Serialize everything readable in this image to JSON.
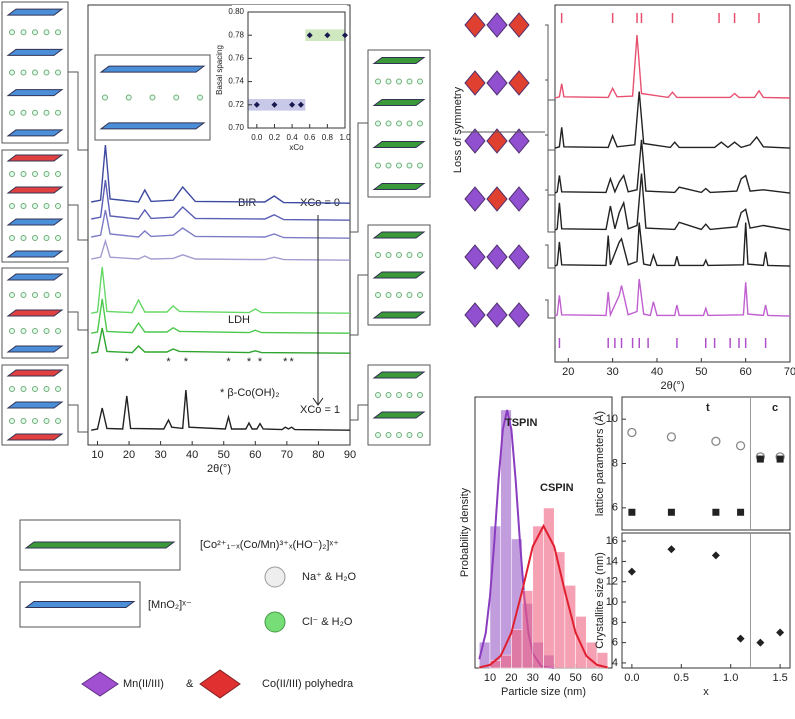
{
  "chart_data": [
    {
      "type": "line",
      "xlabel": "2θ(°)",
      "xlim": [
        7,
        90
      ],
      "xticks": [
        10,
        20,
        30,
        40,
        50,
        60,
        70,
        80,
        90
      ],
      "annotations": [
        "BIR",
        "XCo = 0",
        "LDH",
        "* β-Co(OH)₂",
        "XCo = 1"
      ],
      "peak_marker": "*",
      "peak_marker_x": [
        19.3,
        32.5,
        38,
        51.5,
        58,
        61.5,
        69.5,
        71.5
      ],
      "series": [
        {
          "color": "#3d4aa0",
          "x": [
            8,
            11,
            12.5,
            14,
            23,
            25,
            27,
            34,
            37,
            41,
            63,
            66,
            69,
            90
          ],
          "values": [
            5,
            8,
            100,
            10,
            5,
            25,
            6,
            8,
            30,
            6,
            5,
            15,
            4,
            3
          ]
        },
        {
          "color": "#5b5fb5",
          "x": [
            8,
            11,
            12.5,
            14,
            23,
            25,
            27,
            34,
            37,
            41,
            63,
            66,
            69,
            90
          ],
          "values": [
            5,
            8,
            70,
            10,
            5,
            20,
            6,
            8,
            25,
            6,
            5,
            12,
            4,
            3
          ]
        },
        {
          "color": "#7c7bc5",
          "x": [
            8,
            11,
            12.5,
            14,
            23,
            25,
            27,
            34,
            37,
            41,
            63,
            66,
            69,
            90
          ],
          "values": [
            5,
            8,
            50,
            10,
            5,
            15,
            6,
            8,
            20,
            6,
            5,
            10,
            4,
            3
          ]
        },
        {
          "color": "#a59cd0",
          "x": [
            8,
            11,
            12.5,
            14,
            23,
            25,
            27,
            34,
            37,
            41,
            63,
            66,
            69,
            90
          ],
          "values": [
            5,
            8,
            35,
            8,
            5,
            10,
            5,
            6,
            12,
            5,
            4,
            8,
            4,
            3
          ]
        },
        {
          "color": "#66d866",
          "x": [
            8,
            10,
            11.5,
            13,
            21,
            23,
            25,
            32,
            34,
            36,
            58,
            60,
            62,
            90
          ],
          "values": [
            3,
            5,
            80,
            6,
            4,
            25,
            5,
            5,
            15,
            6,
            4,
            10,
            4,
            3
          ]
        },
        {
          "color": "#4cc84c",
          "x": [
            8,
            10,
            11.5,
            13,
            21,
            23,
            25,
            32,
            34,
            36,
            58,
            60,
            62,
            90
          ],
          "values": [
            3,
            5,
            60,
            6,
            4,
            20,
            5,
            5,
            12,
            6,
            4,
            8,
            4,
            3
          ]
        },
        {
          "color": "#2fa52f",
          "x": [
            8,
            10,
            11.5,
            13,
            21,
            23,
            25,
            32,
            34,
            36,
            58,
            60,
            62,
            90
          ],
          "values": [
            3,
            5,
            45,
            6,
            4,
            15,
            5,
            5,
            10,
            6,
            4,
            7,
            4,
            3
          ]
        },
        {
          "color": "#222222",
          "x": [
            8,
            10,
            11.5,
            13,
            18,
            19.3,
            20.5,
            31,
            32.5,
            33.5,
            37,
            38,
            39,
            50.5,
            51.5,
            52.5,
            57,
            58,
            59,
            60.5,
            61.5,
            62.5,
            68.5,
            69.5,
            70.5,
            71.5,
            72.5,
            90
          ],
          "values": [
            3,
            5,
            40,
            6,
            5,
            60,
            6,
            5,
            20,
            8,
            6,
            70,
            8,
            5,
            25,
            5,
            5,
            15,
            5,
            5,
            14,
            5,
            4,
            8,
            5,
            8,
            4,
            3
          ]
        }
      ]
    },
    {
      "type": "scatter",
      "xlabel": "xCo",
      "ylabel": "Basal spacing",
      "xlim": [
        -0.1,
        1.0
      ],
      "ylim": [
        0.7,
        0.8
      ],
      "xticks": [
        {
          "value": 0,
          "label": "0.0"
        },
        0.2,
        0.4,
        0.6,
        0.8,
        {
          "value": 1,
          "label": "1.0"
        }
      ],
      "yticks": [
        {
          "value": 0.7,
          "label": "0.70"
        },
        0.72,
        0.74,
        0.76,
        0.78,
        {
          "value": 0.8,
          "label": "0.80"
        }
      ],
      "series": [
        {
          "color": "#1a1a50",
          "marker": "diamond",
          "x": [
            0,
            0.2,
            0.4,
            0.5,
            0.6,
            0.8,
            1.0
          ],
          "values": [
            0.72,
            0.72,
            0.72,
            0.72,
            0.78,
            0.78,
            0.78
          ]
        }
      ]
    },
    {
      "type": "line",
      "xlabel": "2θ(°)",
      "xlim": [
        17,
        70
      ],
      "xticks": [
        20,
        30,
        40,
        50,
        60,
        70
      ],
      "annotations": [
        "Loss of symmetry"
      ],
      "reflections": [
        {
          "color": "#e85070",
          "positions": [
            18.5,
            30,
            35.5,
            36.5,
            43.5,
            54,
            57.5,
            63
          ]
        },
        {
          "color": "#b050c8",
          "positions": [
            18,
            29,
            30.5,
            32,
            34.5,
            36,
            38,
            44.5,
            51,
            53,
            56.5,
            58.5,
            60,
            64.5
          ]
        }
      ],
      "series": [
        {
          "color": "#e85070",
          "x": [
            17,
            18,
            18.5,
            19,
            29,
            30,
            31,
            34.5,
            35.5,
            36.5,
            42.5,
            43.5,
            44.5,
            56.5,
            57.5,
            58.5,
            62,
            63,
            64,
            70
          ],
          "values": [
            3,
            5,
            25,
            5,
            4,
            18,
            5,
            6,
            100,
            10,
            4,
            12,
            4,
            4,
            10,
            4,
            4,
            14,
            4,
            3
          ]
        },
        {
          "color": "#222222",
          "x": [
            17,
            18,
            18.5,
            19,
            29,
            30,
            31,
            35,
            36,
            37,
            43,
            44,
            45,
            53,
            54.5,
            56,
            57.5,
            59,
            61,
            62.5,
            64,
            70
          ],
          "values": [
            3,
            5,
            35,
            5,
            4,
            22,
            5,
            8,
            90,
            10,
            4,
            12,
            4,
            4,
            12,
            4,
            12,
            4,
            8,
            20,
            5,
            3
          ]
        },
        {
          "color": "#222222",
          "x": [
            17,
            17.5,
            18,
            18.5,
            28.5,
            29.5,
            30.5,
            31.5,
            32.5,
            33.5,
            35.5,
            36.5,
            37.5,
            44,
            45,
            50,
            51,
            52,
            58,
            59,
            60,
            61,
            64,
            70
          ],
          "values": [
            3,
            5,
            30,
            5,
            4,
            25,
            5,
            20,
            30,
            5,
            8,
            85,
            6,
            4,
            12,
            4,
            10,
            4,
            6,
            25,
            30,
            6,
            8,
            3
          ]
        },
        {
          "color": "#222222",
          "x": [
            17,
            17.5,
            18,
            18.5,
            28.5,
            29.5,
            30.5,
            31.5,
            32.5,
            33.5,
            35.5,
            36.5,
            37.5,
            44,
            45,
            50,
            51,
            52,
            58,
            59,
            60,
            61,
            64,
            70
          ],
          "values": [
            3,
            5,
            45,
            5,
            4,
            40,
            5,
            30,
            45,
            5,
            10,
            90,
            6,
            4,
            15,
            4,
            12,
            4,
            8,
            30,
            35,
            6,
            10,
            3
          ]
        },
        {
          "color": "#222222",
          "x": [
            17,
            17.5,
            18,
            18.5,
            28.5,
            29,
            29.5,
            31.5,
            32,
            33.5,
            35.5,
            36,
            37,
            38.5,
            39.2,
            40,
            44,
            44.5,
            45,
            50.5,
            51,
            51.5,
            59.5,
            60,
            60.5,
            64,
            64.5,
            65,
            70
          ],
          "values": [
            3,
            5,
            40,
            5,
            4,
            50,
            5,
            40,
            45,
            5,
            10,
            70,
            6,
            4,
            20,
            4,
            4,
            18,
            4,
            4,
            12,
            4,
            5,
            70,
            6,
            4,
            25,
            4,
            3
          ]
        },
        {
          "color": "#c060d0",
          "x": [
            17,
            17.5,
            18,
            18.5,
            28.5,
            29,
            29.5,
            31.5,
            32,
            33.5,
            35.5,
            36,
            37,
            38.5,
            39.2,
            40,
            44,
            44.5,
            45,
            50.5,
            51,
            51.5,
            59.5,
            60,
            60.5,
            64,
            64.5,
            65,
            70
          ],
          "values": [
            3,
            5,
            35,
            5,
            4,
            40,
            5,
            35,
            50,
            5,
            10,
            60,
            6,
            4,
            25,
            4,
            4,
            20,
            4,
            4,
            15,
            4,
            5,
            55,
            6,
            4,
            20,
            4,
            3
          ]
        }
      ]
    },
    {
      "type": "histogram",
      "xlabel": "Particle size (nm)",
      "ylabel": "Probability density",
      "xlim": [
        3,
        67
      ],
      "ylim": [
        0,
        105
      ],
      "xticks": [
        10,
        20,
        30,
        40,
        50,
        60
      ],
      "series": [
        {
          "name": "TSPIN",
          "color": "#9a5cc8",
          "fit_color": "#8a3cc0",
          "bins": [
            5,
            10,
            15,
            20,
            25,
            30,
            35,
            40
          ],
          "values": [
            10,
            55,
            100,
            50,
            25,
            10,
            5
          ],
          "fit_x": [
            5,
            8,
            10,
            12,
            14,
            16,
            18,
            20,
            22,
            24,
            26,
            28,
            30,
            34,
            40
          ],
          "fit_values": [
            3.4,
            13.5,
            27.8,
            48.7,
            72.6,
            92.3,
            100,
            92.3,
            72.6,
            48.7,
            27.8,
            13.5,
            5.6,
            0.6,
            0
          ]
        },
        {
          "name": "CSPIN",
          "color": "#f06080",
          "fit_color": "#e02030",
          "bins": [
            10,
            15,
            20,
            25,
            30,
            35,
            40,
            45,
            50,
            55,
            60,
            65
          ],
          "values": [
            3,
            5,
            15,
            30,
            55,
            62,
            45,
            32,
            20,
            10,
            6
          ],
          "fit_x": [
            5,
            10,
            15,
            20,
            25,
            30,
            35,
            40,
            45,
            50,
            55,
            60,
            65
          ],
          "fit_values": [
            0.2,
            1.2,
            4.7,
            13.7,
            29.7,
            47.1,
            55,
            47.1,
            29.7,
            13.7,
            4.7,
            1.2,
            0.2
          ]
        }
      ]
    },
    {
      "type": "scatter",
      "ylabel": "lattice parameters (Å)",
      "xlim": [
        -0.1,
        1.6
      ],
      "ylim": [
        5,
        11
      ],
      "yticks": [
        6,
        8,
        10
      ],
      "annotations": [
        "t",
        "c"
      ],
      "annotation_colors": [
        "#7030a0",
        "#e03040"
      ],
      "boundary_x": 1.2,
      "series": [
        {
          "color": "#888888",
          "marker": "circle-open",
          "x": [
            0,
            0.4,
            0.85,
            1.1,
            1.3,
            1.5
          ],
          "values": [
            9.4,
            9.2,
            9.0,
            8.8,
            8.3,
            8.3
          ]
        },
        {
          "color": "#222222",
          "marker": "square",
          "x": [
            0,
            0.4,
            0.85,
            1.1,
            1.3,
            1.5
          ],
          "values": [
            5.8,
            5.8,
            5.8,
            5.8,
            8.2,
            8.2
          ]
        }
      ]
    },
    {
      "type": "scatter",
      "xlabel": "x",
      "ylabel": "Crystallite size (nm)",
      "xlim": [
        -0.1,
        1.6
      ],
      "ylim": [
        3.5,
        16.8
      ],
      "xticks": [
        {
          "value": 0,
          "label": "0.0"
        },
        0.5,
        {
          "value": 1,
          "label": "1.0"
        },
        1.5
      ],
      "yticks": [
        4,
        6,
        8,
        10,
        12,
        14,
        16
      ],
      "boundary_x": 1.2,
      "series": [
        {
          "color": "#222222",
          "marker": "diamond",
          "x": [
            0,
            0.4,
            0.85,
            1.1,
            1.3,
            1.5
          ],
          "values": [
            13,
            15.2,
            14.6,
            6.4,
            6,
            7
          ]
        }
      ]
    }
  ],
  "legend": {
    "ldh_layer": "[Co²⁺₁₋ₓ(Co/Mn)³⁺ₓ(HO⁻)₂]ˣ⁺",
    "bir_layer": "[MnO₂]ˣ⁻",
    "na": "Na⁺ & H₂O",
    "cl": "Cl⁻ & H₂O",
    "mn": "Mn(II/III)",
    "and": "&",
    "co": "Co(II/III) polyhedra"
  }
}
